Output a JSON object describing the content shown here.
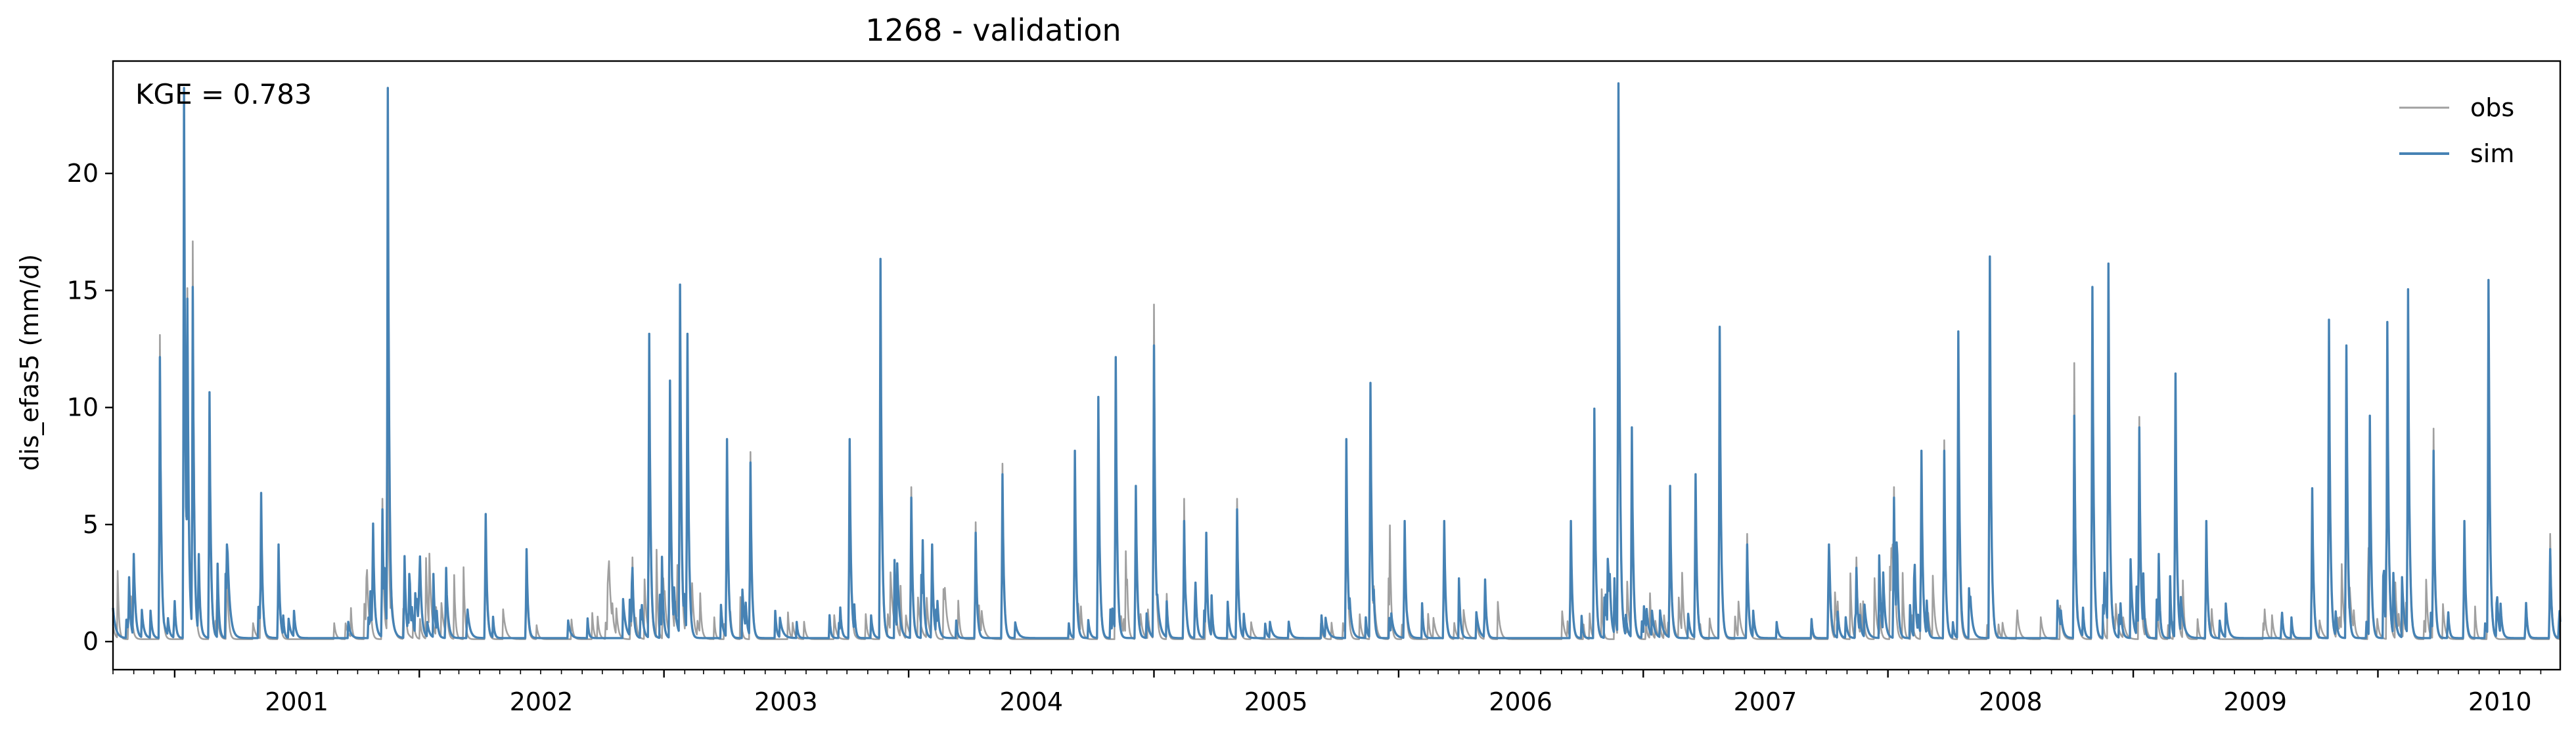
{
  "chart_data": {
    "type": "line",
    "title": "1268 - validation",
    "xlabel": "",
    "ylabel": "dis_efas5 (mm/d)",
    "annotation": "KGE = 0.783",
    "xlim": [
      "2000-10-01",
      "2010-09-30"
    ],
    "ylim": [
      -1.2,
      24.8
    ],
    "x_ticks": [
      "2001",
      "2002",
      "2003",
      "2004",
      "2005",
      "2006",
      "2007",
      "2008",
      "2009",
      "2010"
    ],
    "y_ticks": [
      0,
      5,
      10,
      15,
      20
    ],
    "legend_position": "top-right",
    "grid": false,
    "series": [
      {
        "name": "obs",
        "color": "#a0a0a0",
        "base": 0.1,
        "spikes": [
          [
            "2000-10-25",
            2.2
          ],
          [
            "2000-12-10",
            13.0
          ],
          [
            "2001-01-15",
            22.0
          ],
          [
            "2001-01-20",
            15.0
          ],
          [
            "2001-01-28",
            17.0
          ],
          [
            "2001-02-22",
            9.5
          ],
          [
            "2001-03-20",
            3.5
          ],
          [
            "2001-05-10",
            6.0
          ],
          [
            "2001-06-05",
            3.5
          ],
          [
            "2001-10-20",
            2.0
          ],
          [
            "2001-11-07",
            6.0
          ],
          [
            "2001-11-15",
            9.0
          ],
          [
            "2001-12-10",
            3.0
          ],
          [
            "2002-02-10",
            2.5
          ],
          [
            "2002-04-10",
            4.5
          ],
          [
            "2002-06-10",
            3.0
          ],
          [
            "2002-11-15",
            3.5
          ],
          [
            "2002-12-10",
            11.0
          ],
          [
            "2003-01-10",
            10.0
          ],
          [
            "2003-01-25",
            13.0
          ],
          [
            "2003-02-05",
            12.5
          ],
          [
            "2003-04-05",
            8.3
          ],
          [
            "2003-05-10",
            8.0
          ],
          [
            "2003-10-05",
            8.0
          ],
          [
            "2003-11-20",
            15.0
          ],
          [
            "2004-01-05",
            6.5
          ],
          [
            "2004-02-05",
            4.0
          ],
          [
            "2004-04-10",
            5.0
          ],
          [
            "2004-05-20",
            7.5
          ],
          [
            "2004-09-05",
            7.5
          ],
          [
            "2004-10-10",
            9.5
          ],
          [
            "2004-11-05",
            11.5
          ],
          [
            "2004-12-05",
            6.0
          ],
          [
            "2005-01-01",
            14.3
          ],
          [
            "2005-02-15",
            6.0
          ],
          [
            "2005-03-20",
            4.5
          ],
          [
            "2005-05-05",
            6.0
          ],
          [
            "2005-10-15",
            7.5
          ],
          [
            "2005-11-20",
            10.5
          ],
          [
            "2006-01-10",
            5.0
          ],
          [
            "2006-03-10",
            5.0
          ],
          [
            "2006-05-10",
            2.5
          ],
          [
            "2006-09-15",
            5.0
          ],
          [
            "2006-10-20",
            9.5
          ],
          [
            "2006-11-25",
            23.0
          ],
          [
            "2006-12-15",
            8.5
          ],
          [
            "2007-02-10",
            6.0
          ],
          [
            "2007-03-20",
            6.5
          ],
          [
            "2007-04-25",
            13.0
          ],
          [
            "2007-06-05",
            4.5
          ],
          [
            "2007-10-05",
            4.0
          ],
          [
            "2007-11-15",
            3.5
          ],
          [
            "2008-01-10",
            6.5
          ],
          [
            "2008-02-20",
            7.5
          ],
          [
            "2008-03-25",
            8.5
          ],
          [
            "2008-04-15",
            9.0
          ],
          [
            "2008-06-01",
            15.5
          ],
          [
            "2008-10-05",
            11.8
          ],
          [
            "2008-11-01",
            14.5
          ],
          [
            "2008-11-25",
            16.0
          ],
          [
            "2009-01-10",
            9.5
          ],
          [
            "2009-03-05",
            11.0
          ],
          [
            "2009-04-20",
            4.5
          ],
          [
            "2009-09-25",
            6.0
          ],
          [
            "2009-10-20",
            13.0
          ],
          [
            "2009-11-15",
            9.0
          ],
          [
            "2009-12-20",
            9.0
          ],
          [
            "2010-01-15",
            12.5
          ],
          [
            "2010-02-15",
            14.0
          ],
          [
            "2010-03-25",
            9.0
          ],
          [
            "2010-05-10",
            4.0
          ],
          [
            "2010-06-15",
            14.5
          ],
          [
            "2010-08-10",
            1.5
          ],
          [
            "2010-09-15",
            4.5
          ]
        ]
      },
      {
        "name": "sim",
        "color": "#4682b4",
        "base": 0.15,
        "spikes": [
          [
            "2000-10-25",
            2.6
          ],
          [
            "2000-12-10",
            12.0
          ],
          [
            "2001-01-15",
            23.5
          ],
          [
            "2001-01-20",
            14.5
          ],
          [
            "2001-01-28",
            15.0
          ],
          [
            "2001-02-22",
            10.5
          ],
          [
            "2001-03-20",
            4.0
          ],
          [
            "2001-05-10",
            6.2
          ],
          [
            "2001-06-05",
            4.0
          ],
          [
            "2001-10-20",
            2.0
          ],
          [
            "2001-11-07",
            5.5
          ],
          [
            "2001-11-15",
            23.5
          ],
          [
            "2001-12-10",
            3.5
          ],
          [
            "2002-02-10",
            3.0
          ],
          [
            "2002-04-10",
            5.3
          ],
          [
            "2002-06-10",
            3.8
          ],
          [
            "2002-11-15",
            3.0
          ],
          [
            "2002-12-10",
            13.0
          ],
          [
            "2003-01-10",
            11.0
          ],
          [
            "2003-01-25",
            15.1
          ],
          [
            "2003-02-05",
            13.0
          ],
          [
            "2003-04-05",
            8.5
          ],
          [
            "2003-05-10",
            7.5
          ],
          [
            "2003-10-05",
            8.5
          ],
          [
            "2003-11-20",
            16.2
          ],
          [
            "2004-01-05",
            6.0
          ],
          [
            "2004-02-05",
            4.0
          ],
          [
            "2004-04-10",
            4.5
          ],
          [
            "2004-05-20",
            7.0
          ],
          [
            "2004-09-05",
            8.0
          ],
          [
            "2004-10-10",
            10.3
          ],
          [
            "2004-11-05",
            12.0
          ],
          [
            "2004-12-05",
            6.5
          ],
          [
            "2005-01-01",
            12.5
          ],
          [
            "2005-02-15",
            5.0
          ],
          [
            "2005-03-20",
            4.5
          ],
          [
            "2005-05-05",
            5.5
          ],
          [
            "2005-10-15",
            8.5
          ],
          [
            "2005-11-20",
            10.9
          ],
          [
            "2006-01-10",
            5.0
          ],
          [
            "2006-03-10",
            5.0
          ],
          [
            "2006-05-10",
            2.5
          ],
          [
            "2006-09-15",
            5.0
          ],
          [
            "2006-10-20",
            9.8
          ],
          [
            "2006-11-25",
            23.7
          ],
          [
            "2006-12-15",
            9.0
          ],
          [
            "2007-02-10",
            6.5
          ],
          [
            "2007-03-20",
            7.0
          ],
          [
            "2007-04-25",
            13.3
          ],
          [
            "2007-06-05",
            4.0
          ],
          [
            "2007-10-05",
            4.0
          ],
          [
            "2007-11-15",
            3.0
          ],
          [
            "2008-01-10",
            6.0
          ],
          [
            "2008-02-20",
            8.0
          ],
          [
            "2008-03-25",
            8.0
          ],
          [
            "2008-04-15",
            13.1
          ],
          [
            "2008-06-01",
            16.3
          ],
          [
            "2008-10-05",
            9.5
          ],
          [
            "2008-11-01",
            15.0
          ],
          [
            "2008-11-25",
            16.0
          ],
          [
            "2009-01-10",
            9.0
          ],
          [
            "2009-03-05",
            11.3
          ],
          [
            "2009-04-20",
            5.0
          ],
          [
            "2009-09-25",
            6.4
          ],
          [
            "2009-10-20",
            13.6
          ],
          [
            "2009-11-15",
            12.5
          ],
          [
            "2009-12-20",
            9.5
          ],
          [
            "2010-01-15",
            13.5
          ],
          [
            "2010-02-15",
            14.9
          ],
          [
            "2010-03-25",
            8.0
          ],
          [
            "2010-05-10",
            5.0
          ],
          [
            "2010-06-15",
            15.3
          ],
          [
            "2010-08-10",
            1.5
          ],
          [
            "2010-09-15",
            3.8
          ]
        ]
      }
    ]
  }
}
